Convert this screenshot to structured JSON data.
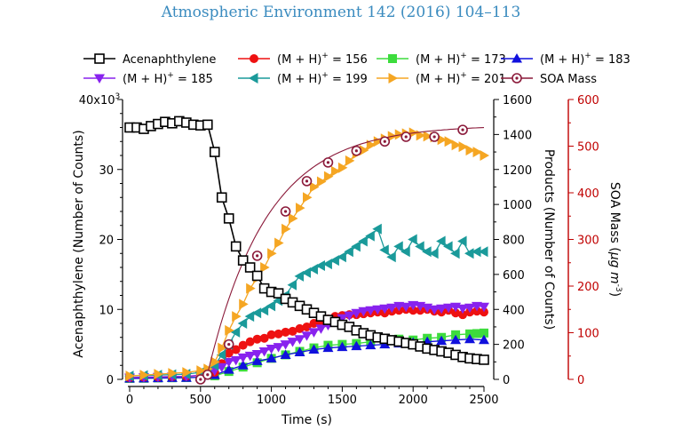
{
  "header": {
    "journal": "Atmospheric Environment 142 (2016) 104–113"
  },
  "chart_data": {
    "type": "line",
    "grid": false,
    "legend_position": "top",
    "xlabel": "Time (s)",
    "xlim": [
      0,
      2500
    ],
    "x_ticks": [
      "0",
      "500",
      "1000",
      "1500",
      "2000",
      "2500"
    ],
    "axes": {
      "left": {
        "label": "Acenaphthylene (Number of Counts)",
        "range": [
          0,
          40000
        ],
        "exponent_label": "40x10",
        "exponent_sup": "3",
        "ticks": [
          "0",
          "10",
          "20",
          "30"
        ]
      },
      "right": {
        "label": "Products (Number of Counts)",
        "range": [
          0,
          1600
        ],
        "ticks": [
          "0",
          "200",
          "400",
          "600",
          "800",
          "1000",
          "1200",
          "1400",
          "1600"
        ]
      },
      "far_right": {
        "label_main": "SOA Mass (",
        "label_unit": "μg m",
        "label_sup": "-3",
        "label_close": ")",
        "color": "#c00000",
        "range": [
          0,
          600
        ],
        "ticks": [
          "0",
          "100",
          "200",
          "300",
          "400",
          "500",
          "600"
        ]
      }
    },
    "series": [
      {
        "name": "Acenaphthylene",
        "legend_main": "Acenaphthylene",
        "axis": "left",
        "color": "#000000",
        "marker": "square-open",
        "line": true,
        "x": [
          0,
          50,
          100,
          150,
          200,
          250,
          300,
          350,
          400,
          450,
          500,
          550,
          600,
          650,
          700,
          750,
          800,
          850,
          900,
          950,
          1000,
          1050,
          1100,
          1150,
          1200,
          1250,
          1300,
          1350,
          1400,
          1450,
          1500,
          1550,
          1600,
          1650,
          1700,
          1750,
          1800,
          1850,
          1900,
          1950,
          2000,
          2050,
          2100,
          2150,
          2200,
          2250,
          2300,
          2350,
          2400,
          2450,
          2500
        ],
        "y": [
          36000,
          36000,
          35800,
          36200,
          36500,
          36800,
          36600,
          36900,
          36700,
          36400,
          36300,
          36400,
          32500,
          26000,
          23000,
          19000,
          17000,
          16000,
          14800,
          13000,
          12500,
          12300,
          11500,
          11000,
          10500,
          10000,
          9500,
          9000,
          8500,
          8200,
          7800,
          7500,
          7000,
          6600,
          6300,
          6000,
          5800,
          5600,
          5400,
          5200,
          5000,
          4700,
          4400,
          4200,
          4000,
          3800,
          3500,
          3200,
          3000,
          2900,
          2800
        ]
      },
      {
        "name": "(M + H)+ = 156",
        "legend_main": "(M + H)",
        "legend_sup": "+",
        "legend_tail": " = 156",
        "axis": "right",
        "color": "#ee1111",
        "marker": "circle",
        "line": true,
        "x": [
          0,
          100,
          200,
          300,
          400,
          500,
          600,
          650,
          700,
          750,
          800,
          850,
          900,
          950,
          1000,
          1050,
          1100,
          1150,
          1200,
          1250,
          1300,
          1350,
          1400,
          1450,
          1500,
          1550,
          1600,
          1650,
          1700,
          1750,
          1800,
          1850,
          1900,
          1950,
          2000,
          2050,
          2100,
          2150,
          2200,
          2250,
          2300,
          2350,
          2400,
          2450,
          2500
        ],
        "y": [
          10,
          12,
          14,
          16,
          18,
          22,
          40,
          90,
          150,
          170,
          195,
          215,
          230,
          235,
          255,
          260,
          270,
          275,
          290,
          300,
          320,
          330,
          345,
          360,
          365,
          370,
          370,
          375,
          380,
          385,
          380,
          390,
          395,
          400,
          395,
          395,
          400,
          390,
          385,
          395,
          380,
          370,
          385,
          390,
          385
        ]
      },
      {
        "name": "(M + H)+ = 173",
        "legend_main": "(M + H)",
        "legend_sup": "+",
        "legend_tail": " = 173",
        "axis": "right",
        "color": "#3ddc3d",
        "marker": "square",
        "line": true,
        "x": [
          0,
          100,
          200,
          300,
          400,
          500,
          600,
          700,
          800,
          900,
          1000,
          1100,
          1200,
          1300,
          1400,
          1500,
          1600,
          1700,
          1800,
          1900,
          2000,
          2100,
          2200,
          2300,
          2400,
          2450,
          2500
        ],
        "y": [
          5,
          6,
          8,
          9,
          10,
          12,
          20,
          45,
          70,
          95,
          120,
          140,
          160,
          180,
          195,
          200,
          205,
          215,
          220,
          230,
          225,
          235,
          240,
          255,
          260,
          262,
          265
        ]
      },
      {
        "name": "(M + H)+ = 183",
        "legend_main": "(M + H)",
        "legend_sup": "+",
        "legend_tail": " = 183",
        "axis": "right",
        "color": "#1010dd",
        "marker": "triangle-up",
        "line": true,
        "x": [
          0,
          100,
          200,
          300,
          400,
          500,
          600,
          700,
          800,
          900,
          1000,
          1100,
          1200,
          1300,
          1400,
          1500,
          1600,
          1700,
          1800,
          1900,
          2000,
          2100,
          2200,
          2300,
          2400,
          2500
        ],
        "y": [
          5,
          6,
          7,
          8,
          9,
          12,
          25,
          55,
          80,
          105,
          120,
          140,
          155,
          170,
          180,
          185,
          190,
          195,
          200,
          205,
          210,
          215,
          220,
          225,
          230,
          225
        ]
      },
      {
        "name": "(M + H)+ = 185",
        "legend_main": "(M + H)",
        "legend_sup": "+",
        "legend_tail": " = 185",
        "axis": "right",
        "color": "#8822ee",
        "marker": "triangle-down",
        "line": true,
        "x": [
          0,
          100,
          200,
          300,
          400,
          500,
          550,
          600,
          650,
          700,
          750,
          800,
          850,
          900,
          950,
          1000,
          1050,
          1100,
          1150,
          1200,
          1250,
          1300,
          1350,
          1400,
          1450,
          1500,
          1550,
          1600,
          1650,
          1700,
          1750,
          1800,
          1850,
          1900,
          1950,
          2000,
          2050,
          2100,
          2150,
          2200,
          2250,
          2300,
          2350,
          2400,
          2450,
          2500
        ],
        "y": [
          10,
          12,
          14,
          16,
          18,
          24,
          30,
          50,
          70,
          100,
          110,
          125,
          135,
          145,
          160,
          175,
          185,
          200,
          215,
          230,
          250,
          270,
          290,
          310,
          330,
          350,
          365,
          380,
          390,
          395,
          400,
          405,
          410,
          420,
          415,
          425,
          420,
          410,
          400,
          405,
          410,
          415,
          405,
          410,
          420,
          415
        ]
      },
      {
        "name": "(M + H)+ = 199",
        "legend_main": "(M + H)",
        "legend_sup": "+",
        "legend_tail": " = 199",
        "axis": "right",
        "color": "#1a9a9a",
        "marker": "triangle-left",
        "line": true,
        "x": [
          0,
          100,
          200,
          300,
          400,
          500,
          550,
          600,
          650,
          700,
          750,
          800,
          850,
          900,
          950,
          1000,
          1050,
          1100,
          1150,
          1200,
          1250,
          1300,
          1350,
          1400,
          1450,
          1500,
          1550,
          1600,
          1650,
          1700,
          1750,
          1800,
          1850,
          1900,
          1950,
          2000,
          2050,
          2100,
          2150,
          2200,
          2250,
          2300,
          2350,
          2400,
          2450,
          2500
        ],
        "y": [
          20,
          22,
          25,
          27,
          30,
          40,
          50,
          80,
          140,
          200,
          270,
          320,
          360,
          380,
          395,
          420,
          450,
          480,
          540,
          590,
          610,
          630,
          650,
          660,
          680,
          700,
          730,
          760,
          790,
          820,
          860,
          740,
          700,
          760,
          730,
          800,
          760,
          730,
          720,
          790,
          760,
          720,
          790,
          720,
          730,
          730
        ]
      },
      {
        "name": "(M + H)+ = 201",
        "legend_main": "(M + H)",
        "legend_sup": "+",
        "legend_tail": " = 201",
        "axis": "right",
        "color": "#f5a623",
        "marker": "triangle-right",
        "line": true,
        "x": [
          0,
          100,
          200,
          300,
          400,
          500,
          550,
          600,
          650,
          700,
          750,
          800,
          850,
          900,
          950,
          1000,
          1050,
          1100,
          1150,
          1200,
          1250,
          1300,
          1350,
          1400,
          1450,
          1500,
          1550,
          1600,
          1650,
          1700,
          1750,
          1800,
          1850,
          1900,
          1950,
          2000,
          2050,
          2100,
          2150,
          2200,
          2250,
          2300,
          2350,
          2400,
          2450,
          2500
        ],
        "y": [
          20,
          25,
          30,
          35,
          40,
          50,
          60,
          100,
          180,
          280,
          360,
          430,
          520,
          580,
          640,
          720,
          780,
          860,
          920,
          980,
          1040,
          1100,
          1130,
          1160,
          1190,
          1210,
          1250,
          1290,
          1310,
          1340,
          1360,
          1375,
          1390,
          1400,
          1405,
          1410,
          1395,
          1390,
          1385,
          1370,
          1360,
          1340,
          1330,
          1310,
          1300,
          1280
        ]
      },
      {
        "name": "SOA Mass",
        "legend_main": "SOA Mass",
        "axis": "far_right",
        "color": "#8b1a3a",
        "marker": "circle-dot",
        "line": false,
        "x": [
          500,
          550,
          700,
          900,
          1100,
          1250,
          1400,
          1600,
          1800,
          1950,
          2150,
          2350
        ],
        "y": [
          0,
          10,
          75,
          265,
          360,
          425,
          465,
          490,
          510,
          520,
          520,
          535
        ]
      }
    ]
  }
}
